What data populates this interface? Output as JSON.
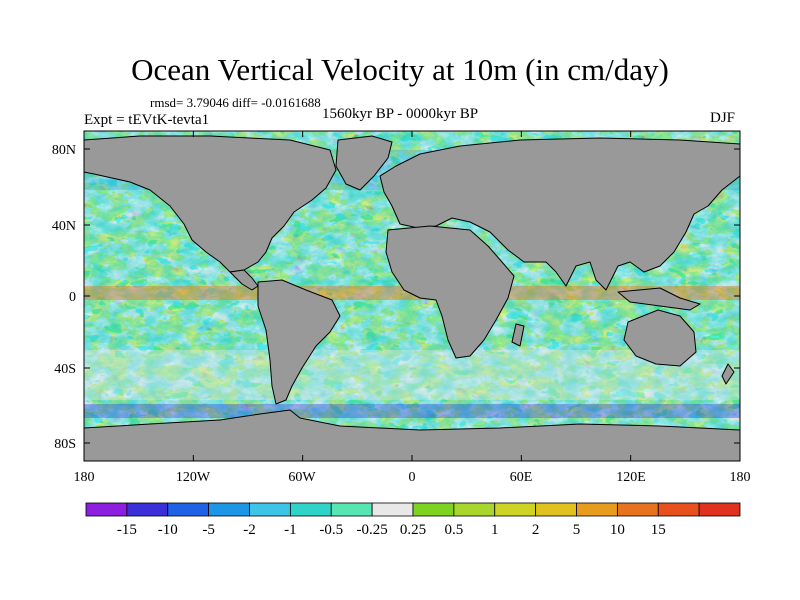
{
  "title": "Ocean Vertical Velocity at 10m (in cm/day)",
  "stats": "rmsd= 3.79046 diff= -0.0161688",
  "period": "1560kyr BP - 0000kyr BP",
  "expt": "Expt = tEVtK-tevta1",
  "season": "DJF",
  "lat_labels": [
    "80N",
    "40N",
    "0",
    "40S",
    "80S"
  ],
  "lon_labels": [
    "180",
    "120W",
    "60W",
    "0",
    "60E",
    "120E",
    "180"
  ],
  "colorbar": {
    "colors": [
      "#8c1fe0",
      "#3a2fd9",
      "#1e63e6",
      "#1e96e6",
      "#3ec4e6",
      "#2fd4c8",
      "#55e6b4",
      "#e8e8e8",
      "#7ed321",
      "#a8d62c",
      "#cdd425",
      "#e0c21e",
      "#e89c1e",
      "#e8731e",
      "#e8501e",
      "#e0321e"
    ],
    "labels": [
      "-15",
      "-10",
      "-5",
      "-2",
      "-1",
      "-0.5",
      "-0.25",
      "0.25",
      "0.5",
      "1",
      "2",
      "5",
      "10",
      "15"
    ]
  },
  "colors": {
    "land": "#999999",
    "coast": "#000000"
  }
}
